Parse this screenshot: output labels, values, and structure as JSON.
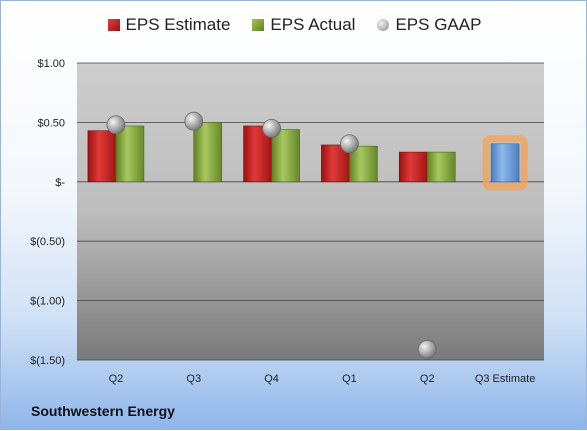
{
  "company": "Southwestern Energy",
  "chart_data": {
    "type": "bar",
    "categories": [
      "Q2",
      "Q3",
      "Q4",
      "Q1",
      "Q2",
      "Q3 Estimate"
    ],
    "series": [
      {
        "name": "EPS Estimate",
        "color": "#c82020",
        "values": [
          0.43,
          null,
          0.47,
          0.31,
          0.25,
          null
        ]
      },
      {
        "name": "EPS Actual",
        "color": "#7ea03a",
        "values": [
          0.47,
          0.5,
          0.44,
          0.3,
          0.25,
          null
        ]
      },
      {
        "name": "EPS GAAP",
        "color": "#a0a0a0",
        "marker": "circle",
        "values": [
          0.48,
          0.51,
          0.45,
          0.32,
          -1.41,
          null
        ]
      },
      {
        "name": "Q3 Estimate",
        "color": "#5b8fd0",
        "values": [
          null,
          null,
          null,
          null,
          null,
          0.32
        ]
      }
    ],
    "yticks": [
      "$1.00",
      "$0.50",
      "$-",
      "$(0.50)",
      "$(1.00)",
      "$(1.50)"
    ],
    "ylim": [
      -1.5,
      1.0
    ],
    "grid": true,
    "legend": "top"
  }
}
